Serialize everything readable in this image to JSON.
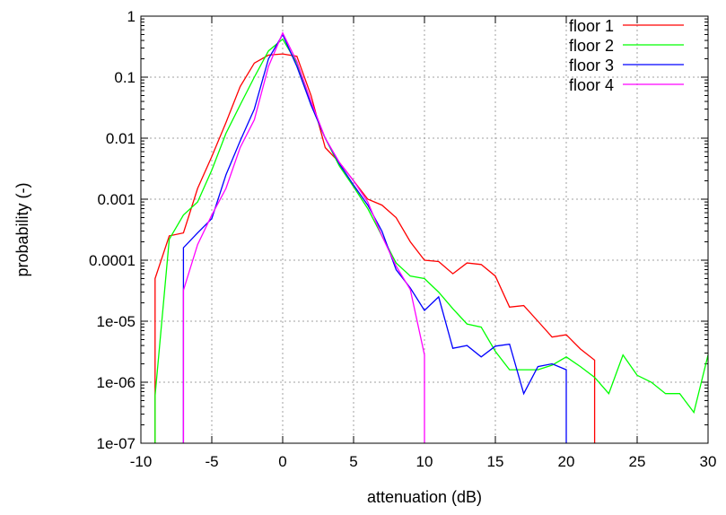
{
  "chart_data": {
    "type": "line",
    "title": "",
    "xlabel": "attenuation (dB)",
    "ylabel": "probability (-)",
    "xlim": [
      -10,
      30
    ],
    "ylim": [
      1e-07,
      1
    ],
    "y_scale": "log",
    "grid": true,
    "legend_position": "top-right",
    "x_ticks": [
      -10,
      -5,
      0,
      5,
      10,
      15,
      20,
      25,
      30
    ],
    "x_tick_labels": [
      "-10",
      "-5",
      "0",
      "5",
      "10",
      "15",
      "20",
      "25",
      "30"
    ],
    "y_ticks": [
      1e-07,
      1e-06,
      1e-05,
      0.0001,
      0.001,
      0.01,
      0.1,
      1
    ],
    "y_tick_labels": [
      "1e-07",
      "1e-06",
      "1e-05",
      "0.0001",
      "0.001",
      "0.01",
      "0.1",
      "1"
    ],
    "series": [
      {
        "name": "floor 1",
        "color": "#ff0000",
        "x": [
          -9,
          -9,
          -8,
          -7,
          -6,
          -5,
          -4,
          -3,
          -2,
          -1,
          0,
          1,
          2,
          3,
          4,
          5,
          6,
          7,
          8,
          9,
          10,
          11,
          12,
          13,
          14,
          15,
          16,
          17,
          18,
          19,
          20,
          21,
          22,
          22
        ],
        "y": [
          1e-07,
          5e-05,
          0.00025,
          0.00028,
          0.0015,
          0.005,
          0.018,
          0.07,
          0.17,
          0.23,
          0.24,
          0.22,
          0.05,
          0.007,
          0.004,
          0.002,
          0.001,
          0.0008,
          0.0005,
          0.0002,
          0.0001,
          9.5e-05,
          6e-05,
          9e-05,
          8.5e-05,
          5.5e-05,
          1.7e-05,
          1.8e-05,
          1e-05,
          5.5e-06,
          6e-06,
          3.5e-06,
          2.3e-06,
          1e-07
        ]
      },
      {
        "name": "floor 2",
        "color": "#00ff00",
        "x": [
          -9,
          -9,
          -8,
          -7,
          -6,
          -5,
          -4,
          -3,
          -2,
          -1,
          0,
          1,
          2,
          3,
          4,
          5,
          6,
          7,
          8,
          9,
          10,
          11,
          12,
          13,
          14,
          15,
          16,
          17,
          18,
          19,
          20,
          21,
          22,
          23,
          24,
          25,
          26,
          27,
          28,
          29,
          30
        ],
        "y": [
          1e-07,
          6e-07,
          0.00022,
          0.00055,
          0.0009,
          0.003,
          0.012,
          0.035,
          0.1,
          0.27,
          0.42,
          0.17,
          0.035,
          0.01,
          0.0035,
          0.0016,
          0.0007,
          0.00025,
          9e-05,
          5.5e-05,
          5e-05,
          3e-05,
          1.6e-05,
          9e-06,
          8e-06,
          3.2e-06,
          1.6e-06,
          1.6e-06,
          1.6e-06,
          1.9e-06,
          2.6e-06,
          1.8e-06,
          1.2e-06,
          6.5e-07,
          2.8e-06,
          1.3e-06,
          1e-06,
          6.5e-07,
          6.5e-07,
          3.2e-07,
          2.8e-06
        ]
      },
      {
        "name": "floor 3",
        "color": "#0000ff",
        "x": [
          -7,
          -7,
          -6,
          -5,
          -4,
          -3,
          -2,
          -1,
          0,
          1,
          2,
          3,
          4,
          5,
          6,
          7,
          8,
          9,
          10,
          11,
          12,
          13,
          14,
          15,
          16,
          17,
          18,
          19,
          20,
          20
        ],
        "y": [
          1e-07,
          0.00016,
          0.00028,
          0.00048,
          0.0025,
          0.009,
          0.03,
          0.2,
          0.5,
          0.15,
          0.035,
          0.01,
          0.0038,
          0.0017,
          0.0008,
          0.0003,
          7e-05,
          3.5e-05,
          1.5e-05,
          2.5e-05,
          3.6e-06,
          4e-06,
          2.6e-06,
          3.9e-06,
          4.2e-06,
          6.5e-07,
          1.8e-06,
          2e-06,
          1.6e-06,
          1e-07
        ]
      },
      {
        "name": "floor 4",
        "color": "#ff00ff",
        "x": [
          -7,
          -7,
          -6,
          -5,
          -4,
          -3,
          -2,
          -1,
          0,
          1,
          2,
          3,
          4,
          5,
          6,
          7,
          8,
          9,
          10,
          10
        ],
        "y": [
          1e-07,
          3.2e-05,
          0.00018,
          0.00055,
          0.0015,
          0.007,
          0.02,
          0.15,
          0.53,
          0.18,
          0.04,
          0.01,
          0.004,
          0.002,
          0.0009,
          0.00025,
          8e-05,
          3.3e-05,
          2.8e-06,
          1e-07
        ]
      }
    ]
  }
}
